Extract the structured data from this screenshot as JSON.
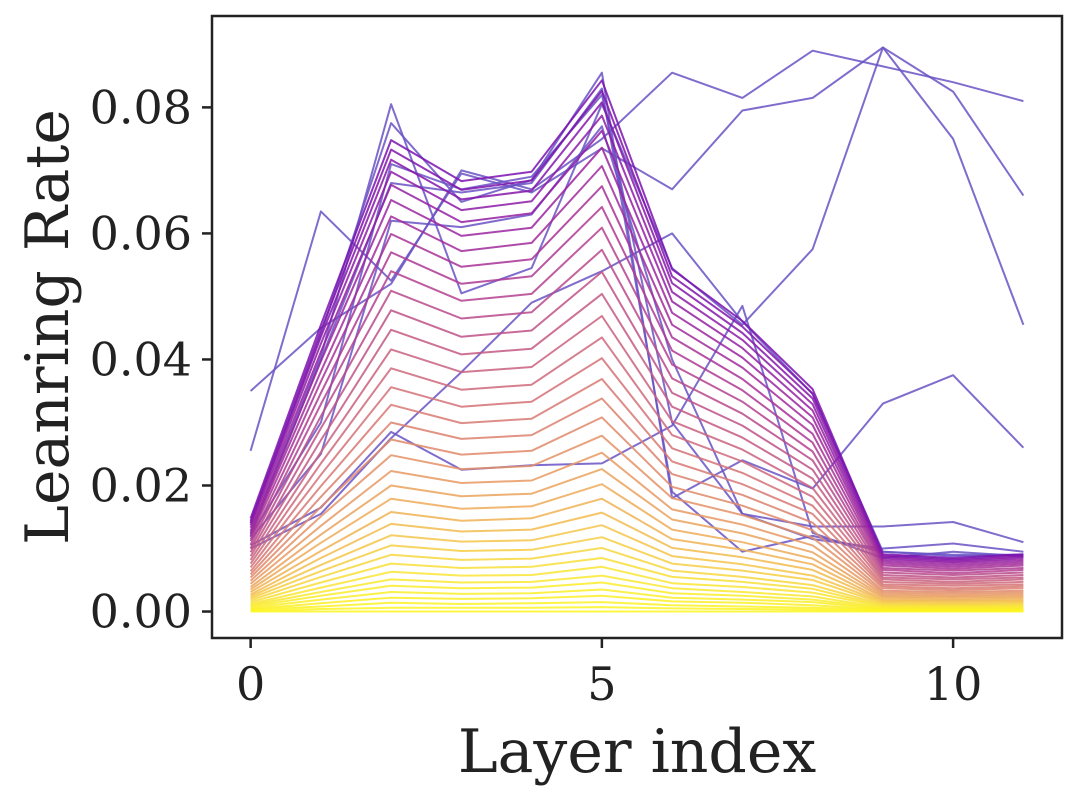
{
  "chart_data": {
    "type": "line",
    "xlabel": "Layer index",
    "ylabel": "Leanring Rate",
    "xlim": [
      -0.55,
      11.55
    ],
    "ylim": [
      -0.0042,
      0.0945
    ],
    "xticks": [
      {
        "value": 0,
        "label": "0"
      },
      {
        "value": 5,
        "label": "5"
      },
      {
        "value": 10,
        "label": "10"
      }
    ],
    "yticks": [
      {
        "value": 0.0,
        "label": "0.00"
      },
      {
        "value": 0.02,
        "label": "0.02"
      },
      {
        "value": 0.04,
        "label": "0.04"
      },
      {
        "value": 0.06,
        "label": "0.06"
      },
      {
        "value": 0.08,
        "label": "0.08"
      }
    ],
    "x": [
      0,
      1,
      2,
      3,
      4,
      5,
      6,
      7,
      8,
      9,
      10,
      11
    ],
    "grid": false,
    "legend": "none",
    "colormap": "plasma (yellow = early/low, purple = late/high)",
    "colors": {
      "early": "#f9e721",
      "mid": "#f0a57e",
      "late": "#7a12b0",
      "outlier": "#5b4bbd",
      "axis": "#222222"
    },
    "series": [
      {
        "color": "#6a52c4",
        "values": [
          0.035,
          0.045,
          0.052,
          0.07,
          0.067,
          0.075,
          0.0855,
          0.0815,
          0.089,
          0.0865,
          0.084,
          0.081
        ]
      },
      {
        "color": "#6a52c4",
        "values": [
          0.0255,
          0.0635,
          0.0525,
          0.0695,
          0.0665,
          0.0735,
          0.067,
          0.0795,
          0.0815,
          0.0895,
          0.0825,
          0.066
        ]
      },
      {
        "color": "#6a52c4",
        "values": [
          0.0125,
          0.0405,
          0.0805,
          0.0505,
          0.0545,
          0.0805,
          0.0545,
          0.0455,
          0.0575,
          0.0895,
          0.075,
          0.0455
        ]
      },
      {
        "color": "#6a52c4",
        "values": [
          0.014,
          0.044,
          0.0775,
          0.065,
          0.0685,
          0.0855,
          0.018,
          0.024,
          0.0195,
          0.033,
          0.0375,
          0.026
        ]
      },
      {
        "color": "#6a52c4",
        "values": [
          0.012,
          0.03,
          0.071,
          0.067,
          0.069,
          0.082,
          0.03,
          0.0155,
          0.0135,
          0.0135,
          0.0142,
          0.011
        ]
      },
      {
        "color": "#6a52c4",
        "values": [
          0.0115,
          0.025,
          0.062,
          0.061,
          0.063,
          0.077,
          0.04,
          0.0155,
          0.0115,
          0.01,
          0.0108,
          0.0095
        ]
      },
      {
        "color": "#6a52c4",
        "values": [
          0.0105,
          0.0165,
          0.0285,
          0.0225,
          0.0232,
          0.0235,
          0.0295,
          0.0485,
          0.0125,
          0.0085,
          0.0095,
          0.0088
        ]
      },
      {
        "color": "#6a52c4",
        "values": [
          0.01,
          0.0155,
          0.0275,
          0.038,
          0.049,
          0.054,
          0.06,
          0.046,
          0.0345,
          0.0095,
          0.0088,
          0.009
        ]
      },
      {
        "color": "#6a52c4",
        "values": [
          0.012,
          0.04,
          0.068,
          0.0665,
          0.068,
          0.083,
          0.019,
          0.0095,
          0.012,
          0.0095,
          0.009,
          0.009
        ]
      },
      {
        "color": "#7a12b0",
        "values": [
          0.0148,
          0.0455,
          0.0748,
          0.0683,
          0.0698,
          0.0843,
          0.0543,
          0.0461,
          0.0353,
          0.0091,
          0.0085,
          0.0091
        ]
      },
      {
        "color": "#8014ad",
        "values": [
          0.0144,
          0.0446,
          0.0733,
          0.0669,
          0.0684,
          0.0826,
          0.0532,
          0.0452,
          0.0346,
          0.0089,
          0.0083,
          0.0089
        ]
      },
      {
        "color": "#8617aa",
        "values": [
          0.0141,
          0.0436,
          0.0717,
          0.0654,
          0.0668,
          0.0808,
          0.0521,
          0.0442,
          0.0338,
          0.0087,
          0.0081,
          0.0087
        ]
      },
      {
        "color": "#8d1ba7",
        "values": [
          0.0137,
          0.0425,
          0.0698,
          0.0637,
          0.0651,
          0.0787,
          0.0507,
          0.0431,
          0.0329,
          0.0085,
          0.0079,
          0.0085
        ]
      },
      {
        "color": "#941fa3",
        "values": [
          0.0133,
          0.0412,
          0.0677,
          0.0618,
          0.0632,
          0.0763,
          0.0492,
          0.0418,
          0.0319,
          0.0082,
          0.0077,
          0.0082
        ]
      },
      {
        "color": "#9b249f",
        "values": [
          0.0128,
          0.0397,
          0.0653,
          0.0596,
          0.0609,
          0.0736,
          0.0474,
          0.0403,
          0.0308,
          0.0079,
          0.0074,
          0.0079
        ]
      },
      {
        "color": "#a12a9b",
        "values": [
          0.0123,
          0.0381,
          0.0627,
          0.0572,
          0.0585,
          0.0707,
          0.0455,
          0.0387,
          0.0296,
          0.0076,
          0.0071,
          0.0076
        ]
      },
      {
        "color": "#a83197",
        "values": [
          0.0118,
          0.0365,
          0.0599,
          0.0547,
          0.0559,
          0.0675,
          0.0435,
          0.0369,
          0.0282,
          0.0073,
          0.0068,
          0.0073
        ]
      },
      {
        "color": "#ae3993",
        "values": [
          0.0112,
          0.0347,
          0.057,
          0.052,
          0.0532,
          0.0642,
          0.0414,
          0.0351,
          0.0268,
          0.0069,
          0.0065,
          0.0069
        ]
      },
      {
        "color": "#b4418f",
        "values": [
          0.0106,
          0.0329,
          0.054,
          0.0493,
          0.0504,
          0.0609,
          0.0392,
          0.0333,
          0.0254,
          0.0066,
          0.0061,
          0.0066
        ]
      },
      {
        "color": "#b9498b",
        "values": [
          0.01,
          0.031,
          0.0509,
          0.0465,
          0.0475,
          0.0574,
          0.037,
          0.0314,
          0.024,
          0.0062,
          0.0058,
          0.0062
        ]
      },
      {
        "color": "#bf5187",
        "values": [
          0.0094,
          0.0291,
          0.0478,
          0.0436,
          0.0446,
          0.0539,
          0.0347,
          0.0295,
          0.0225,
          0.0058,
          0.0054,
          0.0058
        ]
      },
      {
        "color": "#c45983",
        "values": [
          0.0088,
          0.0272,
          0.0447,
          0.0408,
          0.0417,
          0.0504,
          0.0325,
          0.0276,
          0.0211,
          0.0054,
          0.0051,
          0.0054
        ]
      },
      {
        "color": "#c9617f",
        "values": [
          0.0082,
          0.0253,
          0.0416,
          0.038,
          0.0388,
          0.0469,
          0.0302,
          0.0257,
          0.0196,
          0.0051,
          0.0047,
          0.0051
        ]
      },
      {
        "color": "#ce697b",
        "values": [
          0.0076,
          0.0235,
          0.0386,
          0.0352,
          0.036,
          0.0435,
          0.028,
          0.0238,
          0.0182,
          0.0047,
          0.0044,
          0.0047
        ]
      },
      {
        "color": "#d37177",
        "values": [
          0.007,
          0.0217,
          0.0356,
          0.0325,
          0.0333,
          0.0402,
          0.0259,
          0.022,
          0.0168,
          0.0043,
          0.0041,
          0.0043
        ]
      },
      {
        "color": "#d87973",
        "values": [
          0.0064,
          0.0199,
          0.0328,
          0.0299,
          0.0306,
          0.0369,
          0.0238,
          0.0202,
          0.0155,
          0.004,
          0.0037,
          0.004
        ]
      },
      {
        "color": "#dc816f",
        "values": [
          0.0059,
          0.0182,
          0.03,
          0.0274,
          0.028,
          0.0338,
          0.0218,
          0.0185,
          0.0141,
          0.0037,
          0.0034,
          0.0037
        ]
      },
      {
        "color": "#e0896a",
        "values": [
          0.0054,
          0.0166,
          0.0273,
          0.0249,
          0.0255,
          0.0308,
          0.0198,
          0.0168,
          0.0129,
          0.0033,
          0.0031,
          0.0033
        ]
      },
      {
        "color": "#e49266",
        "values": [
          0.0049,
          0.0151,
          0.0248,
          0.0226,
          0.0231,
          0.0279,
          0.018,
          0.0153,
          0.0117,
          0.003,
          0.0028,
          0.003
        ]
      },
      {
        "color": "#e79a62",
        "values": [
          0.0044,
          0.0136,
          0.0223,
          0.0204,
          0.0208,
          0.0252,
          0.0162,
          0.0138,
          0.0105,
          0.0027,
          0.0025,
          0.0027
        ]
      },
      {
        "color": "#eaa25d",
        "values": [
          0.0039,
          0.0122,
          0.02,
          0.0183,
          0.0187,
          0.0226,
          0.0146,
          0.0124,
          0.0094,
          0.0024,
          0.0023,
          0.0024
        ]
      },
      {
        "color": "#edab59",
        "values": [
          0.0035,
          0.0109,
          0.0179,
          0.0163,
          0.0167,
          0.0202,
          0.013,
          0.011,
          0.0084,
          0.0022,
          0.002,
          0.0022
        ]
      },
      {
        "color": "#f0b354",
        "values": [
          0.0031,
          0.0096,
          0.0158,
          0.0144,
          0.0148,
          0.0179,
          0.0115,
          0.0098,
          0.0075,
          0.0019,
          0.0018,
          0.0019
        ]
      },
      {
        "color": "#f2bc4f",
        "values": [
          0.0027,
          0.0085,
          0.0139,
          0.0127,
          0.013,
          0.0157,
          0.0101,
          0.0086,
          0.0066,
          0.0017,
          0.0016,
          0.0017
        ]
      },
      {
        "color": "#f4c54a",
        "values": [
          0.0024,
          0.0074,
          0.0121,
          0.0111,
          0.0113,
          0.0137,
          0.0088,
          0.0075,
          0.0057,
          0.0015,
          0.0014,
          0.0015
        ]
      },
      {
        "color": "#f6ce44",
        "values": [
          0.0021,
          0.0064,
          0.0105,
          0.0096,
          0.0098,
          0.0118,
          0.0076,
          0.0065,
          0.005,
          0.0013,
          0.0012,
          0.0013
        ]
      },
      {
        "color": "#f7d73f",
        "values": [
          0.0018,
          0.0055,
          0.009,
          0.0082,
          0.0084,
          0.0101,
          0.0065,
          0.0055,
          0.0042,
          0.0011,
          0.001,
          0.0011
        ]
      },
      {
        "color": "#f8df3a",
        "values": [
          0.0015,
          0.0046,
          0.0076,
          0.0069,
          0.0071,
          0.0085,
          0.0055,
          0.0047,
          0.0036,
          0.0009,
          0.0009,
          0.0009
        ]
      },
      {
        "color": "#f9e535",
        "values": [
          0.0012,
          0.0038,
          0.0063,
          0.0057,
          0.0058,
          0.0071,
          0.0045,
          0.0039,
          0.003,
          0.0008,
          0.0007,
          0.0008
        ]
      },
      {
        "color": "#f9e931",
        "values": [
          0.001,
          0.0031,
          0.0051,
          0.0046,
          0.0047,
          0.0057,
          0.0037,
          0.0031,
          0.0024,
          0.0006,
          0.0006,
          0.0006
        ]
      },
      {
        "color": "#faec2d",
        "values": [
          0.0008,
          0.0025,
          0.0041,
          0.0037,
          0.0038,
          0.0046,
          0.0029,
          0.0025,
          0.0019,
          0.0005,
          0.0005,
          0.0005
        ]
      },
      {
        "color": "#faee2a",
        "values": [
          0.0006,
          0.0019,
          0.0031,
          0.0028,
          0.0029,
          0.0035,
          0.0022,
          0.0019,
          0.0015,
          0.0004,
          0.0004,
          0.0004
        ]
      },
      {
        "color": "#fbf027",
        "values": [
          0.0004,
          0.0013,
          0.0022,
          0.002,
          0.0021,
          0.0025,
          0.0016,
          0.0014,
          0.001,
          0.0003,
          0.0003,
          0.0003
        ]
      },
      {
        "color": "#fbf225",
        "values": [
          0.0003,
          0.0008,
          0.0014,
          0.0012,
          0.0013,
          0.0015,
          0.001,
          0.0008,
          0.0006,
          0.0002,
          0.0002,
          0.0002
        ]
      },
      {
        "color": "#fcf423",
        "values": [
          0.0001,
          0.0004,
          0.0006,
          0.0006,
          0.0006,
          0.0007,
          0.0005,
          0.0004,
          0.0003,
          0.0001,
          0.0001,
          0.0001
        ]
      },
      {
        "color": "#fcf622",
        "values": [
          0.0,
          0.0,
          0.0,
          0.0,
          0.0,
          0.0,
          0.0,
          0.0,
          0.0,
          0.0,
          0.0,
          0.0
        ]
      }
    ]
  }
}
